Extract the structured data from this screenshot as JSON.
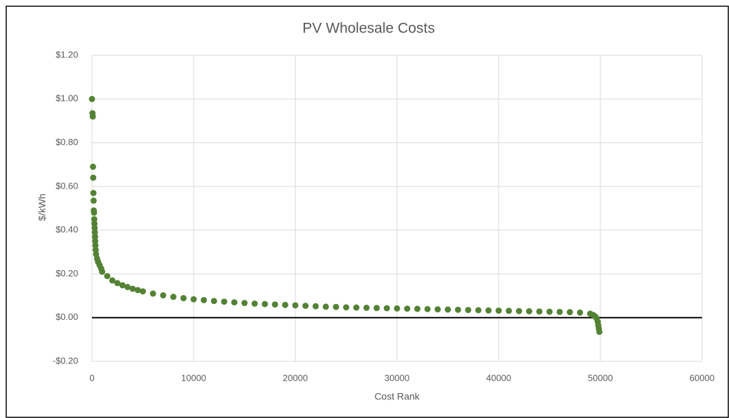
{
  "chart_data": {
    "type": "scatter",
    "title": "PV Wholesale Costs",
    "x_label": "Cost Rank",
    "y_label": "$/kWh",
    "color": "#548235",
    "grid": true,
    "xlim": [
      0,
      60000
    ],
    "xticks": [
      0,
      10000,
      20000,
      30000,
      40000,
      50000,
      60000
    ],
    "ylim": [
      -0.2,
      1.2
    ],
    "yticks": [
      {
        "value": -0.2,
        "label": "-$0.20"
      },
      {
        "value": 0,
        "label": "$0.00"
      },
      {
        "value": 0.2,
        "label": "$0.20"
      },
      {
        "value": 0.4,
        "label": "$0.40"
      },
      {
        "value": 0.6,
        "label": "$0.60"
      },
      {
        "value": 0.8,
        "label": "$0.80"
      },
      {
        "value": 1.0,
        "label": "$1.00"
      },
      {
        "value": 1.2,
        "label": "$1.20"
      }
    ],
    "x": [
      0,
      50,
      80,
      100,
      120,
      140,
      160,
      180,
      200,
      220,
      240,
      260,
      280,
      300,
      320,
      340,
      360,
      400,
      500,
      600,
      750,
      900,
      1000,
      1500,
      2000,
      2500,
      3000,
      3500,
      4000,
      4500,
      5000,
      6000,
      7000,
      8000,
      9000,
      10000,
      11000,
      12000,
      13000,
      14000,
      15000,
      16000,
      17000,
      18000,
      19000,
      20000,
      21000,
      22000,
      23000,
      24000,
      25000,
      26000,
      27000,
      28000,
      29000,
      30000,
      31000,
      32000,
      33000,
      34000,
      35000,
      36000,
      37000,
      38000,
      39000,
      40000,
      41000,
      42000,
      43000,
      44000,
      45000,
      46000,
      47000,
      48000,
      49000,
      49300,
      49500,
      49650,
      49750,
      49800,
      49850,
      49900
    ],
    "values": [
      1.0,
      0.935,
      0.92,
      0.69,
      0.64,
      0.57,
      0.535,
      0.49,
      0.48,
      0.45,
      0.43,
      0.41,
      0.39,
      0.37,
      0.35,
      0.33,
      0.31,
      0.29,
      0.27,
      0.255,
      0.24,
      0.225,
      0.21,
      0.19,
      0.17,
      0.158,
      0.148,
      0.14,
      0.132,
      0.126,
      0.12,
      0.11,
      0.102,
      0.095,
      0.089,
      0.084,
      0.08,
      0.076,
      0.073,
      0.07,
      0.067,
      0.064,
      0.062,
      0.06,
      0.058,
      0.056,
      0.054,
      0.052,
      0.05,
      0.049,
      0.047,
      0.046,
      0.045,
      0.044,
      0.043,
      0.042,
      0.041,
      0.04,
      0.039,
      0.038,
      0.037,
      0.036,
      0.035,
      0.034,
      0.033,
      0.032,
      0.031,
      0.03,
      0.029,
      0.028,
      0.027,
      0.026,
      0.025,
      0.023,
      0.018,
      0.012,
      0.005,
      -0.005,
      -0.02,
      -0.035,
      -0.05,
      -0.065
    ]
  }
}
